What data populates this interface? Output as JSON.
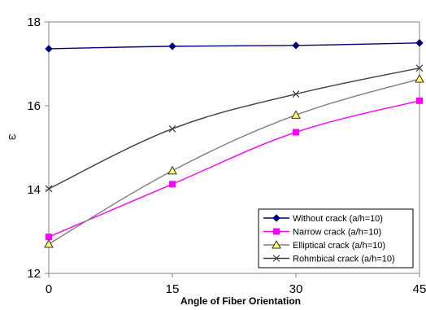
{
  "chart_data": {
    "type": "line",
    "title": "",
    "xlabel": "Angle of Fiber Orientation",
    "ylabel": "ω",
    "x": [
      0,
      15,
      30,
      45
    ],
    "xticks": [
      "0",
      "15",
      "30",
      "45"
    ],
    "ylim": [
      12,
      18
    ],
    "yticks": [
      12,
      14,
      16,
      18
    ],
    "grid": false,
    "legend_position": "bottom-right",
    "series": [
      {
        "name": "Without crack (a/h=10)",
        "values": [
          17.36,
          17.42,
          17.44,
          17.5
        ],
        "color": "#000080",
        "marker": "diamond"
      },
      {
        "name": "Narrow crack (a/h=10)",
        "values": [
          12.87,
          14.13,
          15.37,
          16.12
        ],
        "color": "#ff00ff",
        "marker": "square"
      },
      {
        "name": "Elliptical crack (a/h=10)",
        "values": [
          12.7,
          14.45,
          15.78,
          16.64
        ],
        "color": "#808080",
        "marker": "triangle"
      },
      {
        "name": "Rohmbical crack (a/h=10)",
        "values": [
          14.02,
          15.45,
          16.28,
          16.9
        ],
        "color": "#404040",
        "marker": "x"
      }
    ]
  }
}
